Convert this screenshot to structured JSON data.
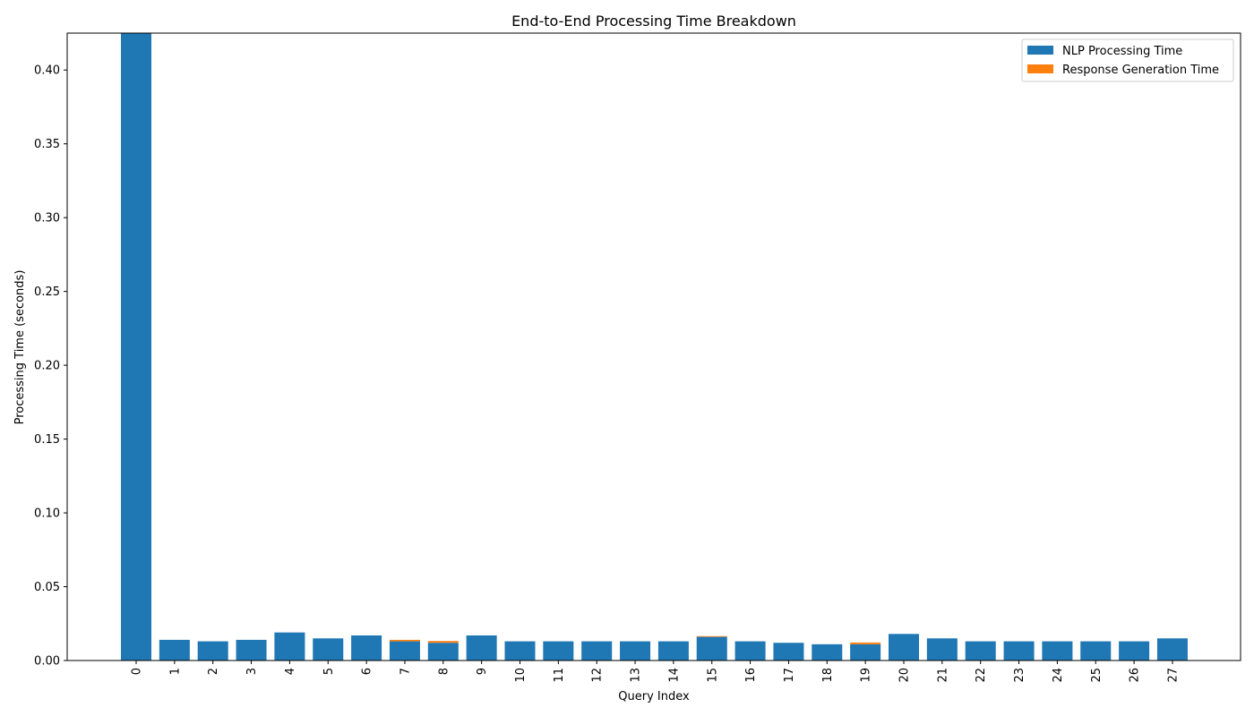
{
  "chart_data": {
    "type": "bar",
    "stacked": true,
    "title": "End-to-End Processing Time Breakdown",
    "xlabel": "Query Index",
    "ylabel": "Processing Time (seconds)",
    "ylim": [
      0,
      0.425
    ],
    "yticks": [
      "0.00",
      "0.05",
      "0.10",
      "0.15",
      "0.20",
      "0.25",
      "0.30",
      "0.35",
      "0.40"
    ],
    "categories": [
      "0",
      "1",
      "2",
      "3",
      "4",
      "5",
      "6",
      "7",
      "8",
      "9",
      "10",
      "11",
      "12",
      "13",
      "14",
      "15",
      "16",
      "17",
      "18",
      "19",
      "20",
      "21",
      "22",
      "23",
      "24",
      "25",
      "26",
      "27"
    ],
    "series": [
      {
        "name": "NLP Processing Time",
        "color": "#1f77b4",
        "values": [
          0.425,
          0.014,
          0.013,
          0.014,
          0.019,
          0.015,
          0.017,
          0.013,
          0.012,
          0.017,
          0.013,
          0.013,
          0.013,
          0.013,
          0.013,
          0.016,
          0.013,
          0.012,
          0.011,
          0.011,
          0.018,
          0.015,
          0.013,
          0.013,
          0.013,
          0.013,
          0.013,
          0.015
        ]
      },
      {
        "name": "Response Generation Time",
        "color": "#ff7f0e",
        "values": [
          0,
          0,
          0,
          0,
          0,
          0,
          0,
          0.001,
          0.0012,
          0,
          0,
          0,
          0,
          0,
          0,
          0.0005,
          0,
          0,
          0,
          0.0012,
          0,
          0,
          0,
          0,
          0,
          0,
          0,
          0
        ]
      }
    ],
    "legend_position": "top-right",
    "grid": false
  }
}
